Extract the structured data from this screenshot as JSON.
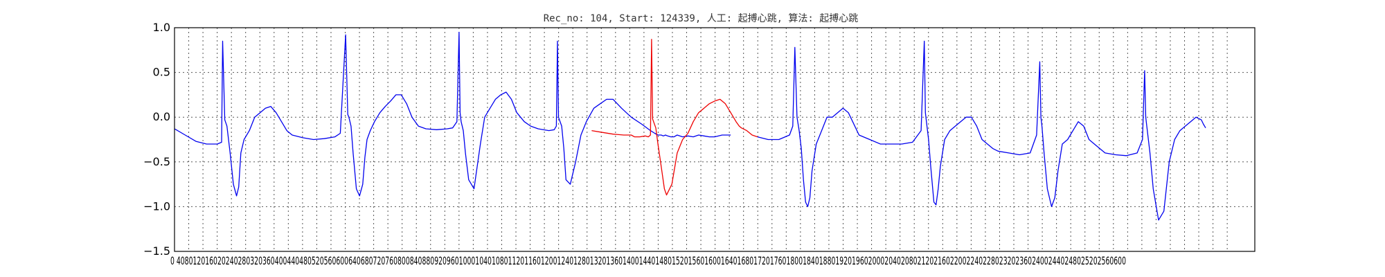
{
  "chart_data": {
    "type": "line",
    "title": "Rec_no: 104, Start: 124339, 人工: 起搏心跳, 算法: 起搏心跳",
    "xlabel": "",
    "ylabel": "",
    "xlim": [
      0,
      1010
    ],
    "ylim": [
      -1.5,
      1.0
    ],
    "grid": true,
    "legend": "none",
    "yticks": [
      1.0,
      0.5,
      0.0,
      -0.5,
      -1.0,
      -1.5
    ],
    "ytick_labels": [
      "1.0",
      "0.5",
      "0.0",
      "−0.5",
      "−1.0",
      "−1.5"
    ],
    "xtick_step": 13.3,
    "xtick_count": 75,
    "xtick_labels_text": "0 4080120160202402803203604004404805205606006406807207608008408809209601000104010801120116012001240128013201360140014401480152015601600164016801720176018001840188019201960200020402080212021602200224022802320236024002440248025202560600",
    "colors": {
      "normal": "#0000ee",
      "highlight": "#ee0000"
    },
    "series": [
      {
        "color": "#0000ee",
        "x": [
          0,
          10,
          20,
          30,
          40,
          44,
          45,
          47,
          49,
          52,
          55,
          58,
          60,
          62,
          65,
          70,
          75,
          80,
          85,
          90,
          95,
          100,
          105,
          110,
          120,
          130,
          140,
          150,
          155,
          160,
          162,
          163,
          165,
          167,
          170,
          173,
          176,
          178,
          180,
          183,
          187,
          192,
          197,
          202,
          207,
          212,
          217,
          222,
          228,
          235,
          245,
          255,
          260,
          264,
          266,
          267,
          268,
          270,
          272,
          275,
          280,
          283,
          286,
          288,
          290,
          295,
          300,
          305,
          310,
          315,
          320,
          327,
          333,
          340,
          350,
          355,
          357,
          358,
          359,
          362,
          364,
          366,
          370,
          375,
          380,
          385,
          392,
          398,
          404,
          410,
          418,
          427,
          437,
          445,
          449,
          452,
          455,
          457,
          459,
          461,
          464,
          467,
          470,
          475,
          480,
          485,
          490,
          495,
          500,
          505,
          512,
          520
        ],
        "y": [
          -0.13,
          -0.2,
          -0.27,
          -0.3,
          -0.3,
          -0.28,
          0.85,
          -0.03,
          -0.1,
          -0.4,
          -0.75,
          -0.88,
          -0.78,
          -0.4,
          -0.25,
          -0.15,
          0.0,
          0.05,
          0.1,
          0.12,
          0.05,
          -0.05,
          -0.15,
          -0.2,
          -0.23,
          -0.25,
          -0.24,
          -0.22,
          -0.18,
          0.92,
          0.03,
          0.0,
          -0.1,
          -0.4,
          -0.8,
          -0.88,
          -0.75,
          -0.45,
          -0.25,
          -0.15,
          -0.05,
          0.05,
          0.12,
          0.18,
          0.25,
          0.25,
          0.15,
          0.0,
          -0.1,
          -0.13,
          -0.14,
          -0.13,
          -0.12,
          -0.05,
          0.95,
          0.05,
          -0.05,
          -0.15,
          -0.4,
          -0.7,
          -0.8,
          -0.55,
          -0.3,
          -0.15,
          0.0,
          0.1,
          0.2,
          0.25,
          0.28,
          0.2,
          0.05,
          -0.05,
          -0.1,
          -0.13,
          -0.15,
          -0.14,
          -0.1,
          0.85,
          0.0,
          -0.1,
          -0.35,
          -0.7,
          -0.75,
          -0.5,
          -0.2,
          -0.05,
          0.1,
          0.15,
          0.2,
          0.2,
          0.1,
          0.0,
          -0.08,
          -0.15,
          -0.18,
          -0.2,
          -0.2,
          -0.21,
          -0.2,
          -0.21,
          -0.22,
          -0.22,
          -0.2,
          -0.22,
          -0.21,
          -0.22,
          -0.2,
          -0.21,
          -0.22,
          -0.22,
          -0.2,
          -0.2
        ]
      },
      {
        "color": "#ee0000",
        "x": [
          390,
          400,
          410,
          420,
          427,
          430,
          435,
          440,
          443,
          445,
          446,
          447,
          450,
          452,
          455,
          458,
          460,
          465,
          470,
          475,
          480,
          485,
          490,
          495,
          500,
          505,
          510,
          515,
          520,
          525,
          528,
          530,
          535,
          540,
          545
        ],
        "y": [
          -0.15,
          -0.17,
          -0.19,
          -0.2,
          -0.2,
          -0.22,
          -0.22,
          -0.21,
          -0.22,
          -0.2,
          0.87,
          -0.02,
          -0.12,
          -0.3,
          -0.55,
          -0.8,
          -0.87,
          -0.75,
          -0.4,
          -0.25,
          -0.18,
          -0.05,
          0.05,
          0.1,
          0.15,
          0.18,
          0.2,
          0.15,
          0.05,
          -0.05,
          -0.1,
          -0.12,
          -0.15,
          -0.2,
          -0.22
        ]
      },
      {
        "color": "#0000ee",
        "x": [
          545,
          555,
          565,
          575,
          578,
          580,
          582,
          584,
          586,
          588,
          590,
          592,
          594,
          596,
          600,
          605,
          610,
          615,
          620,
          625,
          630,
          640,
          650,
          660,
          670,
          680,
          690,
          698,
          701,
          702,
          703,
          705,
          707,
          710,
          712,
          714,
          716,
          720,
          725,
          730,
          735,
          740,
          745,
          750,
          755,
          760,
          765,
          770,
          780,
          790,
          800,
          806,
          809,
          810,
          811,
          813,
          816,
          820,
          823,
          826,
          830,
          835,
          840,
          845,
          850,
          855,
          860,
          870,
          880,
          890,
          900,
          905,
          907,
          908,
          909,
          912,
          915,
          920,
          925,
          930,
          935,
          940,
          945,
          950,
          955,
          960,
          962,
          964
        ],
        "y": [
          -0.22,
          -0.25,
          -0.25,
          -0.2,
          -0.1,
          0.78,
          0.0,
          -0.15,
          -0.35,
          -0.7,
          -0.95,
          -1.0,
          -0.9,
          -0.6,
          -0.3,
          -0.15,
          0.0,
          0.0,
          0.05,
          0.1,
          0.05,
          -0.2,
          -0.25,
          -0.3,
          -0.3,
          -0.3,
          -0.28,
          -0.15,
          0.85,
          0.05,
          -0.05,
          -0.25,
          -0.55,
          -0.95,
          -0.98,
          -0.8,
          -0.55,
          -0.25,
          -0.15,
          -0.1,
          -0.05,
          0.0,
          0.0,
          -0.1,
          -0.25,
          -0.3,
          -0.35,
          -0.38,
          -0.4,
          -0.42,
          -0.4,
          -0.2,
          0.62,
          0.0,
          -0.1,
          -0.4,
          -0.8,
          -1.0,
          -0.9,
          -0.6,
          -0.3,
          -0.25,
          -0.15,
          -0.05,
          -0.1,
          -0.25,
          -0.3,
          -0.4,
          -0.42,
          -0.43,
          -0.4,
          -0.25,
          0.52,
          0.0,
          -0.1,
          -0.4,
          -0.8,
          -1.15,
          -1.05,
          -0.5,
          -0.25,
          -0.15,
          -0.1,
          -0.05,
          0.0,
          -0.03,
          -0.08,
          -0.12
        ]
      }
    ]
  }
}
